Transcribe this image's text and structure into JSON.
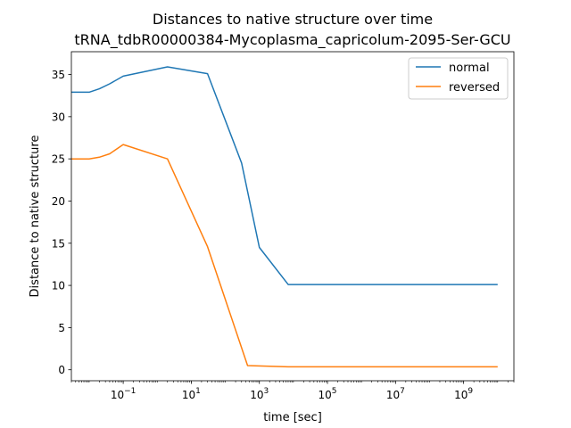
{
  "chart_data": {
    "type": "line",
    "title": "Distances to native structure over time",
    "subtitle": "tRNA_tdbR00000384-Mycoplasma_capricolum-2095-Ser-GCU",
    "xlabel": "time [sec]",
    "ylabel": "Distance to native structure",
    "xscale": "log",
    "xlim": [
      0.003,
      30000000000
    ],
    "ylim": [
      -1.3,
      37.7
    ],
    "x_ticks": [
      {
        "value": 0.1,
        "base": "10",
        "exp": "−1"
      },
      {
        "value": 10,
        "base": "10",
        "exp": "1"
      },
      {
        "value": 1000,
        "base": "10",
        "exp": "3"
      },
      {
        "value": 100000,
        "base": "10",
        "exp": "5"
      },
      {
        "value": 10000000,
        "base": "10",
        "exp": "7"
      },
      {
        "value": 1000000000,
        "base": "10",
        "exp": "9"
      }
    ],
    "y_ticks": [
      0,
      5,
      10,
      15,
      20,
      25,
      30,
      35
    ],
    "legend_position": "top-right",
    "grid": false,
    "series": [
      {
        "name": "normal",
        "color": "#1f77b4",
        "points": [
          [
            0.003,
            32.9
          ],
          [
            0.01,
            32.9
          ],
          [
            0.02,
            33.3
          ],
          [
            0.04,
            33.9
          ],
          [
            0.1,
            34.8
          ],
          [
            2,
            35.9
          ],
          [
            30,
            35.1
          ],
          [
            300,
            24.5
          ],
          [
            1000,
            14.5
          ],
          [
            7000,
            10.1
          ],
          [
            10000000000,
            10.1
          ]
        ]
      },
      {
        "name": "reversed",
        "color": "#ff7f0e",
        "points": [
          [
            0.003,
            25.0
          ],
          [
            0.01,
            25.0
          ],
          [
            0.02,
            25.2
          ],
          [
            0.04,
            25.6
          ],
          [
            0.1,
            26.7
          ],
          [
            2,
            25.0
          ],
          [
            30,
            14.6
          ],
          [
            450,
            0.5
          ],
          [
            7000,
            0.35
          ],
          [
            10000000000,
            0.35
          ]
        ]
      }
    ]
  }
}
